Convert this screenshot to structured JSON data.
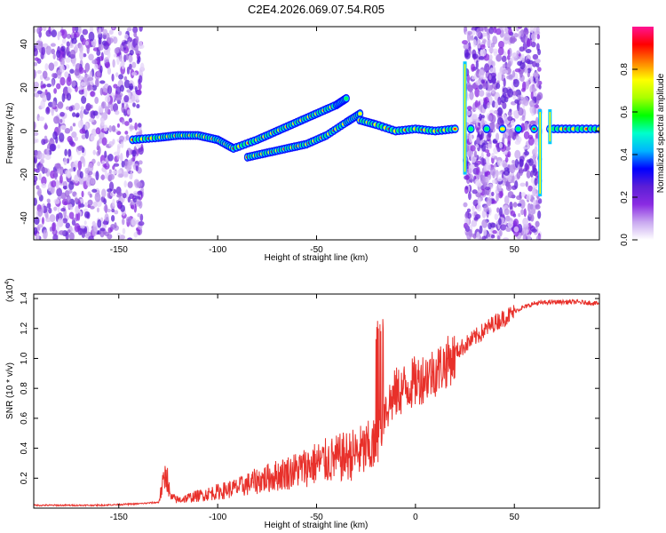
{
  "title": "C2E4.2026.069.07.54.R05",
  "chart_data": [
    {
      "type": "heatmap",
      "name": "spectrogram",
      "xlabel": "Height of straight line (km)",
      "ylabel": "Frequency (Hz)",
      "xlim": [
        -193,
        93
      ],
      "ylim": [
        -50,
        48
      ],
      "xticks": [
        -150,
        -100,
        -50,
        0,
        50
      ],
      "yticks": [
        -40,
        -20,
        0,
        20,
        40
      ],
      "colorbar": {
        "label": "Normalized spectral amplitude",
        "range": [
          0.0,
          1.0
        ],
        "ticks": [
          "0.0",
          "0.2",
          "0.4",
          "0.6",
          "0.8"
        ],
        "tick_values": [
          0.0,
          0.2,
          0.4,
          0.6,
          0.8
        ],
        "colors": [
          "#ffffff",
          "#c9a8f0",
          "#8a2be2",
          "#5b1fd6",
          "#0000ff",
          "#00b4ff",
          "#00ffcc",
          "#00ff00",
          "#aaff00",
          "#ffff00",
          "#ff8000",
          "#ff0000",
          "#ff1493"
        ]
      },
      "noise_regions_km": [
        [
          -193,
          -138
        ],
        [
          25,
          63
        ]
      ],
      "signal_track": [
        {
          "x": -143,
          "y": -4
        },
        {
          "x": -130,
          "y": -3
        },
        {
          "x": -120,
          "y": -2
        },
        {
          "x": -110,
          "y": -2
        },
        {
          "x": -100,
          "y": -4
        },
        {
          "x": -92,
          "y": -8
        },
        {
          "x": -80,
          "y": -4
        },
        {
          "x": -70,
          "y": 0
        },
        {
          "x": -60,
          "y": 4
        },
        {
          "x": -50,
          "y": 8
        },
        {
          "x": -40,
          "y": 12
        },
        {
          "x": -35,
          "y": 15
        }
      ],
      "signal_track_lower": [
        {
          "x": -85,
          "y": -12
        },
        {
          "x": -75,
          "y": -10
        },
        {
          "x": -65,
          "y": -8
        },
        {
          "x": -55,
          "y": -6
        },
        {
          "x": -45,
          "y": -2
        },
        {
          "x": -35,
          "y": 4
        },
        {
          "x": -28,
          "y": 8
        }
      ],
      "signal_track_late": [
        {
          "x": -28,
          "y": 5
        },
        {
          "x": -20,
          "y": 3
        },
        {
          "x": -10,
          "y": 0
        },
        {
          "x": 0,
          "y": 1
        },
        {
          "x": 10,
          "y": 0
        },
        {
          "x": 20,
          "y": 1
        },
        {
          "x": 68,
          "y": 1
        },
        {
          "x": 80,
          "y": 1
        },
        {
          "x": 93,
          "y": 1
        }
      ]
    },
    {
      "type": "line",
      "name": "snr",
      "xlabel": "Height of straight line (km)",
      "ylabel": "SNR (10 * v/v)",
      "multiplier": "(x10",
      "multiplier_exp": "4",
      "multiplier_close": ")",
      "xlim": [
        -193,
        93
      ],
      "ylim": [
        0,
        1.43
      ],
      "xticks": [
        -150,
        -100,
        -50,
        0,
        50
      ],
      "yticks": [
        0.2,
        0.4,
        0.6,
        0.8,
        1.0,
        1.2,
        1.4
      ],
      "series": [
        {
          "name": "SNR",
          "color": "#e8302a",
          "x": [
            -193,
            -180,
            -160,
            -140,
            -130,
            -126,
            -124,
            -120,
            -110,
            -100,
            -90,
            -80,
            -70,
            -60,
            -50,
            -40,
            -30,
            -20,
            -15,
            -10,
            0,
            10,
            20,
            30,
            40,
            50,
            60,
            70,
            80,
            93
          ],
          "y": [
            0.02,
            0.02,
            0.02,
            0.03,
            0.04,
            0.27,
            0.08,
            0.06,
            0.09,
            0.12,
            0.15,
            0.2,
            0.24,
            0.28,
            0.33,
            0.36,
            0.4,
            0.45,
            0.7,
            0.8,
            0.88,
            0.95,
            1.05,
            1.15,
            1.25,
            1.32,
            1.37,
            1.38,
            1.38,
            1.37
          ]
        }
      ]
    }
  ]
}
